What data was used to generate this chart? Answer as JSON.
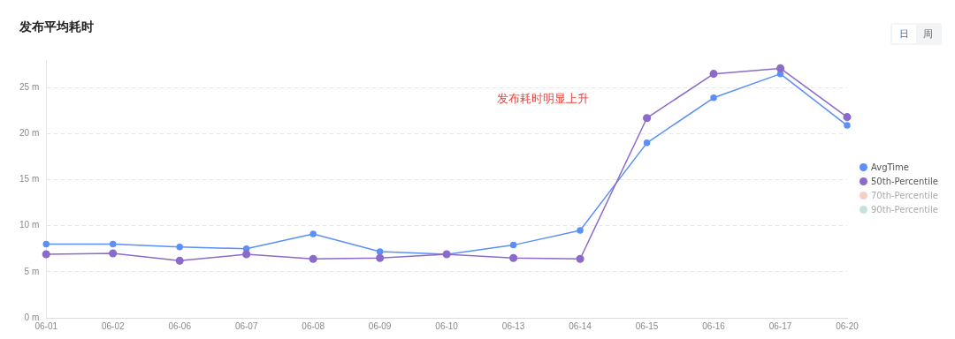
{
  "chart_data": {
    "type": "line",
    "title": "发布平均耗时",
    "categories": [
      "06-01",
      "06-02",
      "06-06",
      "06-07",
      "06-08",
      "06-09",
      "06-10",
      "06-13",
      "06-14",
      "06-15",
      "06-16",
      "06-17",
      "06-20"
    ],
    "series": [
      {
        "name": "AvgTime",
        "color": "#5b8ff9",
        "values": [
          8.0,
          8.0,
          7.7,
          7.5,
          9.1,
          7.2,
          6.9,
          7.9,
          9.5,
          19.0,
          23.9,
          26.5,
          20.9
        ]
      },
      {
        "name": "50th-Percentile",
        "color": "#8a6bc9",
        "values": [
          6.9,
          7.0,
          6.2,
          6.9,
          6.4,
          6.5,
          6.9,
          6.5,
          6.4,
          21.7,
          26.5,
          27.1,
          21.8
        ]
      },
      {
        "name": "70th-Percentile",
        "color": "#f6d0c8",
        "values": [
          null,
          null,
          null,
          null,
          null,
          null,
          null,
          null,
          null,
          null,
          null,
          null,
          null
        ]
      },
      {
        "name": "90th-Percentile",
        "color": "#c6e3d9",
        "values": [
          null,
          null,
          null,
          null,
          null,
          null,
          null,
          null,
          null,
          null,
          null,
          null,
          null
        ]
      }
    ],
    "yticks": [
      {
        "value": 0,
        "label": "0 m"
      },
      {
        "value": 5,
        "label": "5 m"
      },
      {
        "value": 10,
        "label": "10 m"
      },
      {
        "value": 15,
        "label": "15 m"
      },
      {
        "value": 20,
        "label": "20 m"
      },
      {
        "value": 25,
        "label": "25 m"
      }
    ],
    "ylim": [
      0,
      28
    ],
    "grid": "y",
    "marker": "circle",
    "line_style": "solid",
    "legend": "right",
    "annotations": [
      "发布耗时明显上升",
      "日",
      "周"
    ]
  }
}
